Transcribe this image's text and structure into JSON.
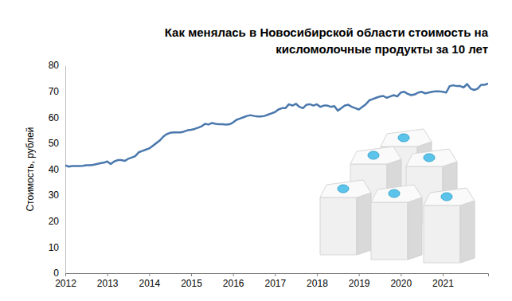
{
  "chart_data": {
    "type": "line",
    "title": "Как менялась в Новосибирской области стоимость на кисломолочные продукты за 10 лет",
    "y_label": "Стоимость, рублей",
    "categories": [
      "2012",
      null,
      null,
      null,
      null,
      null,
      null,
      null,
      null,
      null,
      null,
      null,
      "2013",
      null,
      null,
      null,
      null,
      null,
      null,
      null,
      null,
      null,
      null,
      null,
      "2014",
      null,
      null,
      null,
      null,
      null,
      null,
      null,
      null,
      null,
      null,
      null,
      "2015",
      null,
      null,
      null,
      null,
      null,
      null,
      null,
      null,
      null,
      null,
      null,
      "2016",
      null,
      null,
      null,
      null,
      null,
      null,
      null,
      null,
      null,
      null,
      null,
      "2017",
      null,
      null,
      null,
      null,
      null,
      null,
      null,
      null,
      null,
      null,
      null,
      "2018",
      null,
      null,
      null,
      null,
      null,
      null,
      null,
      null,
      null,
      null,
      null,
      "2019",
      null,
      null,
      null,
      null,
      null,
      null,
      null,
      null,
      null,
      null,
      null,
      "2020",
      null,
      null,
      null,
      null,
      null,
      null,
      null,
      null,
      null,
      null,
      null,
      "2021",
      null,
      null,
      null,
      null,
      null,
      null,
      null,
      null,
      null,
      null,
      null,
      null,
      null
    ],
    "values": [
      41.5,
      41,
      41.2,
      41.2,
      41.2,
      41.3,
      41.5,
      41.5,
      41.7,
      42,
      42.3,
      42.5,
      43,
      42,
      43,
      43.5,
      43.5,
      43.2,
      44,
      44.5,
      45,
      46.5,
      47,
      47.5,
      48,
      49,
      50,
      51,
      52.5,
      53.5,
      54,
      54.2,
      54.2,
      54.2,
      54.5,
      55,
      55.2,
      55.5,
      56,
      56.5,
      57.5,
      57.2,
      57.8,
      57.5,
      57.3,
      57.3,
      57.2,
      57.3,
      58,
      59,
      59.5,
      60,
      60.5,
      60.8,
      60.5,
      60.3,
      60.3,
      60.5,
      61,
      61.5,
      62,
      63,
      63.5,
      63.5,
      65,
      64.5,
      65.2,
      64,
      63.5,
      64.8,
      65,
      64.5,
      65,
      64,
      64.5,
      64.5,
      64,
      64.3,
      62.5,
      63.5,
      64.5,
      64.8,
      64,
      63.5,
      63,
      64,
      65,
      66.5,
      67,
      67.5,
      68,
      68.2,
      67.5,
      68,
      68.5,
      68,
      69.5,
      69.8,
      69,
      68.5,
      68.8,
      69.5,
      69.8,
      69.2,
      69.5,
      69.8,
      70,
      70,
      69.8,
      69.5,
      72,
      72.3,
      72,
      72,
      71.5,
      72.8,
      71,
      70.5,
      71,
      72.5,
      72.5,
      73
    ],
    "color": "#4a78ad",
    "ylim": [
      0,
      80
    ],
    "yticks": [
      0,
      10,
      20,
      30,
      40,
      50,
      60,
      70,
      80
    ],
    "grid": false
  }
}
